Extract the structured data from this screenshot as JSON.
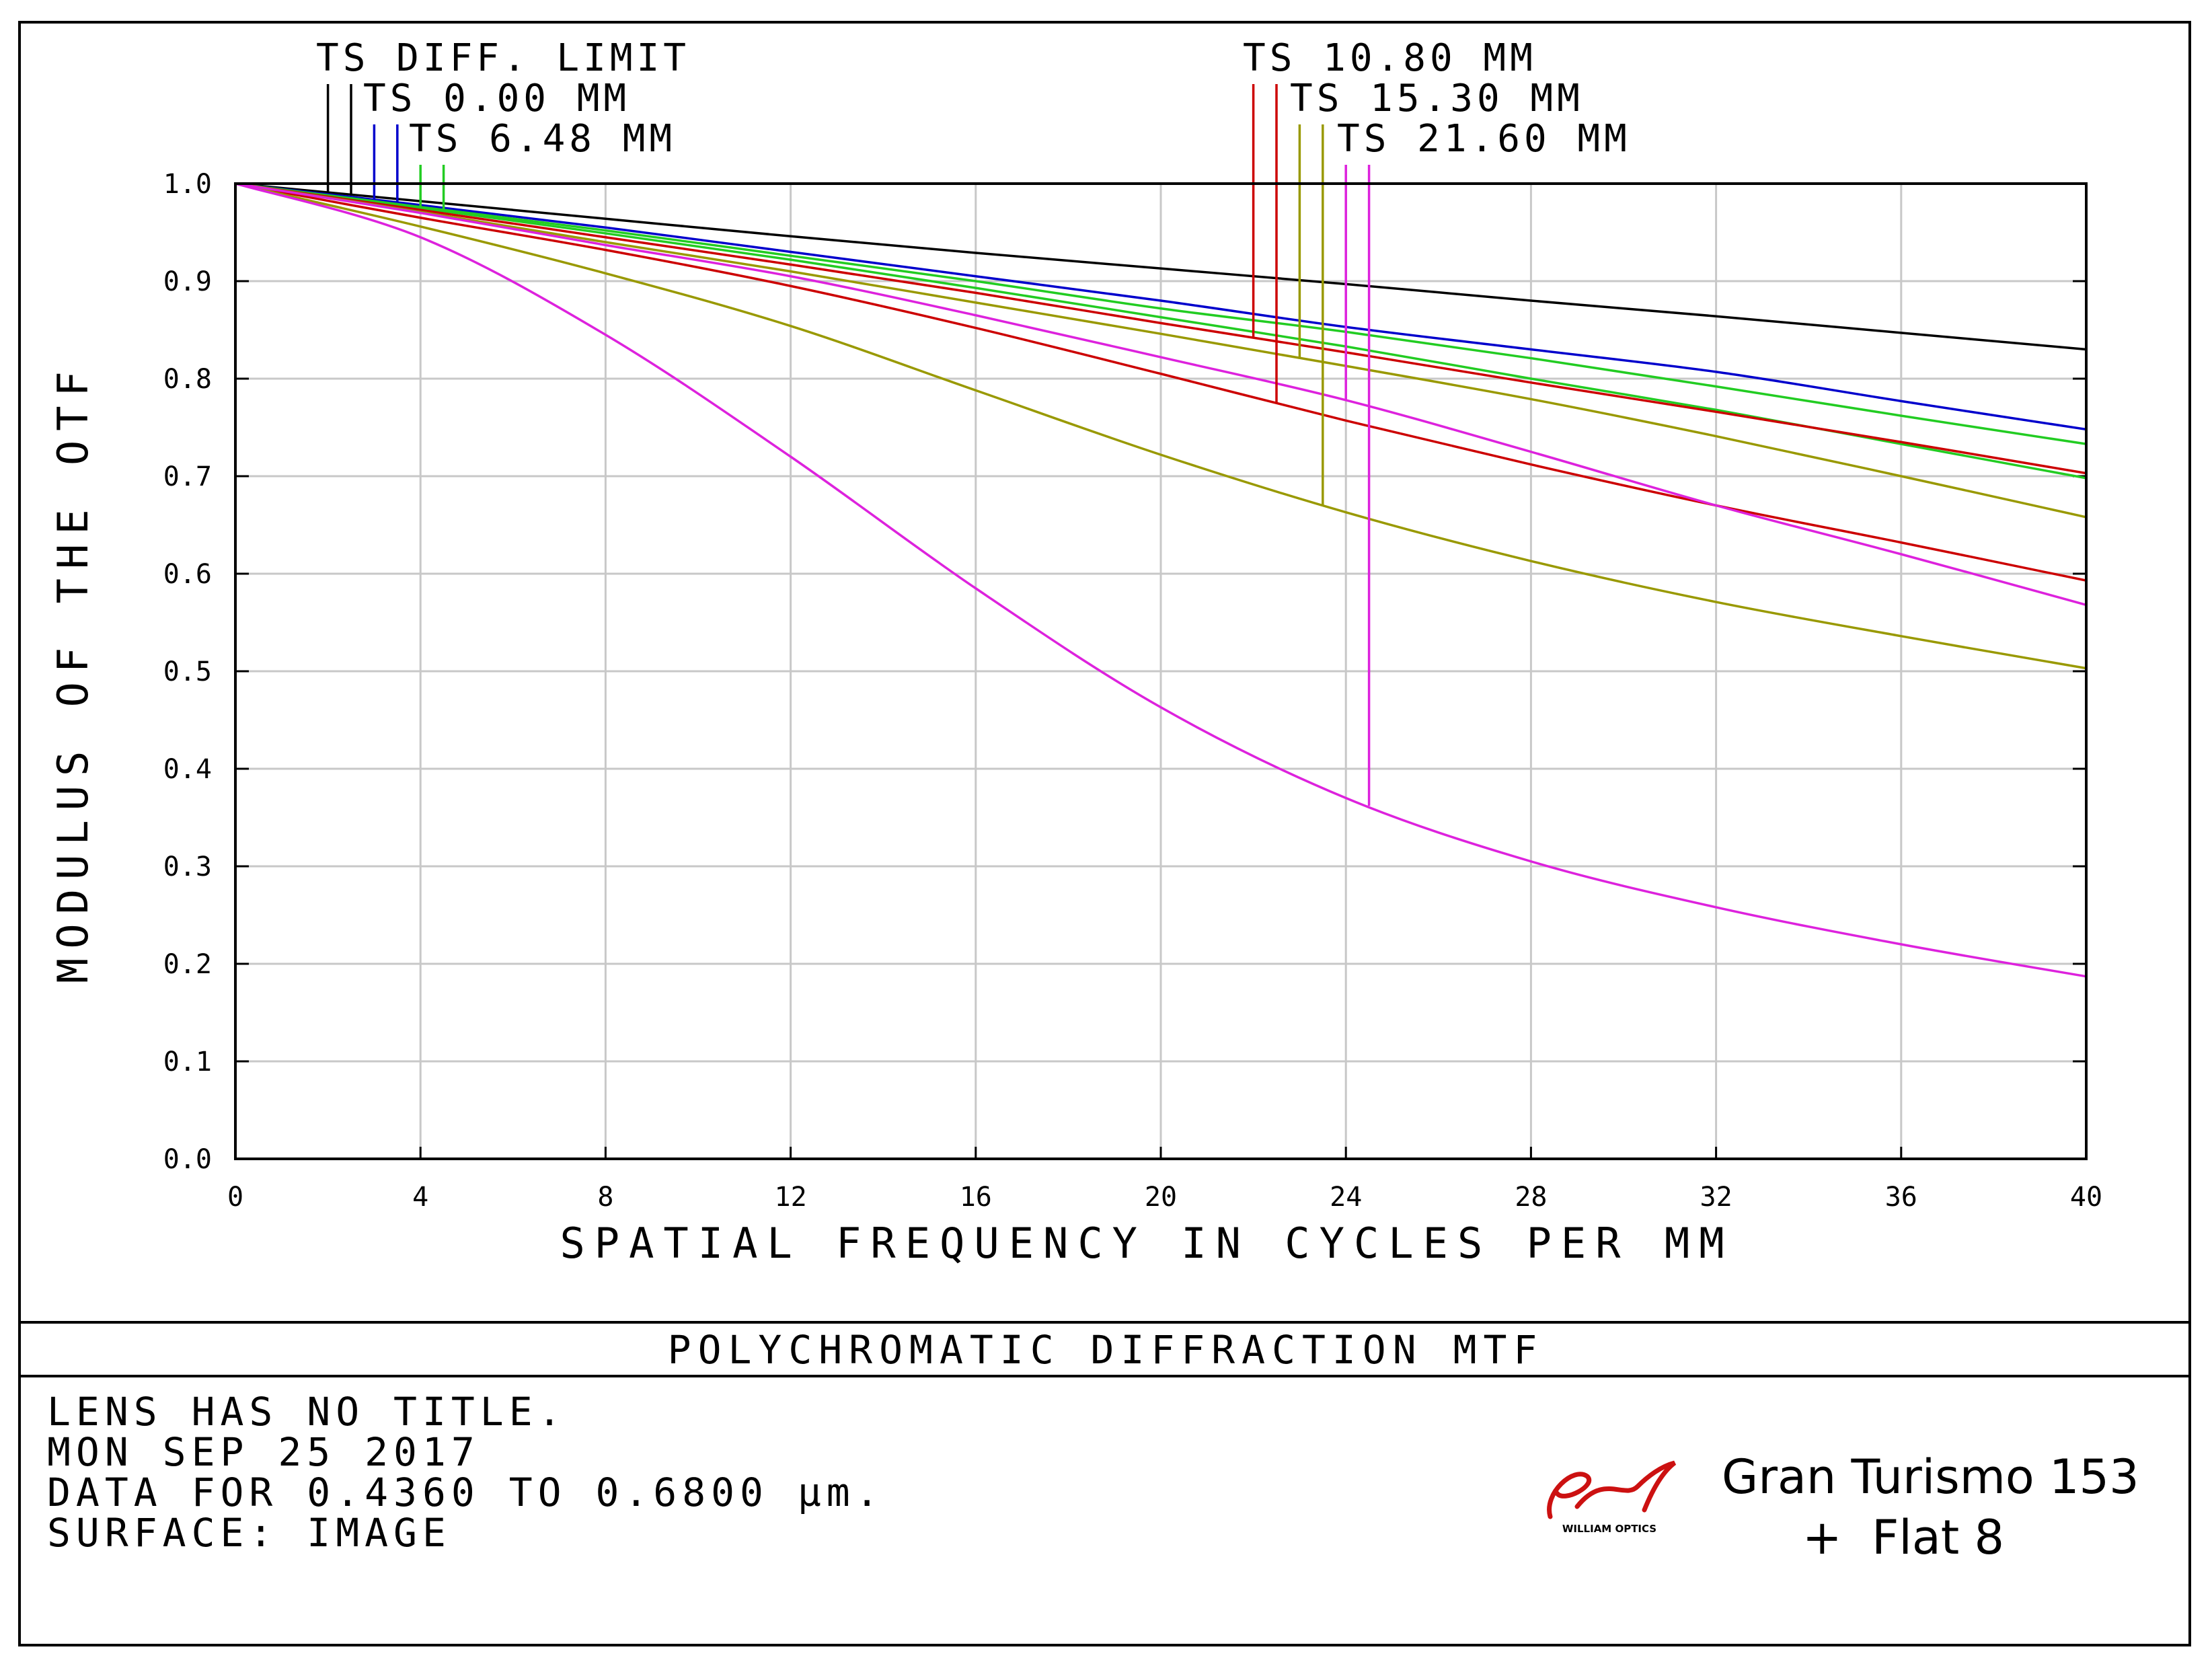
{
  "chart_data": {
    "type": "line",
    "title": "POLYCHROMATIC DIFFRACTION MTF",
    "xlabel": "SPATIAL FREQUENCY IN CYCLES PER MM",
    "ylabel": "MODULUS OF THE OTF",
    "xlim": [
      0,
      40
    ],
    "ylim": [
      0,
      1
    ],
    "xticks": [
      "0",
      "4",
      "8",
      "12",
      "16",
      "20",
      "24",
      "28",
      "32",
      "36",
      "40"
    ],
    "yticks": [
      "0.0",
      "0.1",
      "0.2",
      "0.3",
      "0.4",
      "0.5",
      "0.6",
      "0.7",
      "0.8",
      "0.9",
      "1.0"
    ],
    "grid": true,
    "x": [
      0,
      4,
      8,
      12,
      16,
      20,
      24,
      28,
      32,
      36,
      40
    ],
    "series": [
      {
        "name": "TS DIFF. LIMIT",
        "color": "#000000",
        "curves": [
          [
            1.0,
            0.982,
            0.964,
            0.946,
            0.929,
            0.913,
            0.897,
            0.88,
            0.864,
            0.847,
            0.83
          ]
        ]
      },
      {
        "name": "TS 0.00 MM",
        "color": "#0000cc",
        "curves": [
          [
            1.0,
            0.978,
            0.955,
            0.93,
            0.905,
            0.88,
            0.853,
            0.83,
            0.807,
            0.777,
            0.748
          ]
        ]
      },
      {
        "name": "TS 6.48 MM",
        "color": "#22cc22",
        "curves": [
          [
            1.0,
            0.976,
            0.952,
            0.926,
            0.9,
            0.872,
            0.848,
            0.821,
            0.792,
            0.762,
            0.733
          ],
          [
            1.0,
            0.975,
            0.949,
            0.922,
            0.893,
            0.863,
            0.833,
            0.8,
            0.768,
            0.733,
            0.698
          ]
        ]
      },
      {
        "name": "TS 10.80 MM",
        "color": "#cc0000",
        "curves": [
          [
            1.0,
            0.973,
            0.945,
            0.917,
            0.888,
            0.857,
            0.827,
            0.796,
            0.766,
            0.735,
            0.703
          ],
          [
            1.0,
            0.965,
            0.932,
            0.895,
            0.852,
            0.805,
            0.757,
            0.712,
            0.67,
            0.632,
            0.593
          ]
        ]
      },
      {
        "name": "TS 15.30 MM",
        "color": "#999900",
        "curves": [
          [
            1.0,
            0.971,
            0.94,
            0.91,
            0.878,
            0.846,
            0.813,
            0.779,
            0.741,
            0.7,
            0.658
          ],
          [
            1.0,
            0.956,
            0.908,
            0.854,
            0.788,
            0.722,
            0.663,
            0.613,
            0.571,
            0.536,
            0.503
          ]
        ]
      },
      {
        "name": "TS 21.60 MM",
        "color": "#dd22dd",
        "curves": [
          [
            1.0,
            0.97,
            0.937,
            0.905,
            0.865,
            0.822,
            0.778,
            0.725,
            0.67,
            0.62,
            0.568
          ],
          [
            1.0,
            0.945,
            0.845,
            0.72,
            0.585,
            0.463,
            0.37,
            0.305,
            0.258,
            0.22,
            0.187
          ]
        ]
      }
    ],
    "legend_markers": [
      {
        "series": 0,
        "x": [
          2.0,
          2.5
        ]
      },
      {
        "series": 1,
        "x": [
          3.0,
          3.5
        ]
      },
      {
        "series": 2,
        "x": [
          4.0,
          4.5
        ]
      },
      {
        "series": 3,
        "x": [
          22.0,
          22.5
        ]
      },
      {
        "series": 4,
        "x": [
          23.0,
          23.5
        ]
      },
      {
        "series": 5,
        "x": [
          24.0,
          24.5
        ]
      }
    ]
  },
  "info": {
    "line1": "LENS HAS NO TITLE.",
    "line2": "MON SEP 25 2017",
    "line3": "DATA FOR 0.4360 TO 0.6800 µm.",
    "line4": "SURFACE: IMAGE"
  },
  "logo": {
    "text": "WILLIAM OPTICS",
    "color": "#cc1111"
  },
  "lens_name": {
    "line1": "Gran Turismo 153",
    "line2": "+  Flat 8"
  }
}
